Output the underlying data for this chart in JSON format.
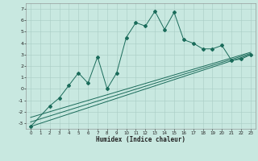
{
  "xlabel": "Humidex (Indice chaleur)",
  "bg_color": "#c8e8e0",
  "grid_color": "#a8ccc4",
  "line_color": "#1a6b5a",
  "xlim": [
    -0.5,
    23.5
  ],
  "ylim": [
    -3.5,
    7.5
  ],
  "xticks": [
    0,
    1,
    2,
    3,
    4,
    5,
    6,
    7,
    8,
    9,
    10,
    11,
    12,
    13,
    14,
    15,
    16,
    17,
    18,
    19,
    20,
    21,
    22,
    23
  ],
  "yticks": [
    -3,
    -2,
    -1,
    0,
    1,
    2,
    3,
    4,
    5,
    6,
    7
  ],
  "scatter_x": [
    0,
    2,
    3,
    4,
    5,
    6,
    7,
    8,
    9,
    10,
    11,
    12,
    13,
    14,
    15,
    16,
    17,
    18,
    19,
    20,
    21,
    22,
    23
  ],
  "scatter_y": [
    -3.3,
    -1.5,
    -0.8,
    0.3,
    1.4,
    0.5,
    2.8,
    0.0,
    1.4,
    4.5,
    5.8,
    5.5,
    6.8,
    5.2,
    6.7,
    4.3,
    4.0,
    3.5,
    3.5,
    3.8,
    2.5,
    2.6,
    3.0
  ],
  "trend_lines": [
    {
      "x": [
        0,
        23
      ],
      "y": [
        -3.3,
        3.0
      ]
    },
    {
      "x": [
        0,
        23
      ],
      "y": [
        -2.9,
        3.1
      ]
    },
    {
      "x": [
        0,
        23
      ],
      "y": [
        -2.5,
        3.2
      ]
    }
  ]
}
